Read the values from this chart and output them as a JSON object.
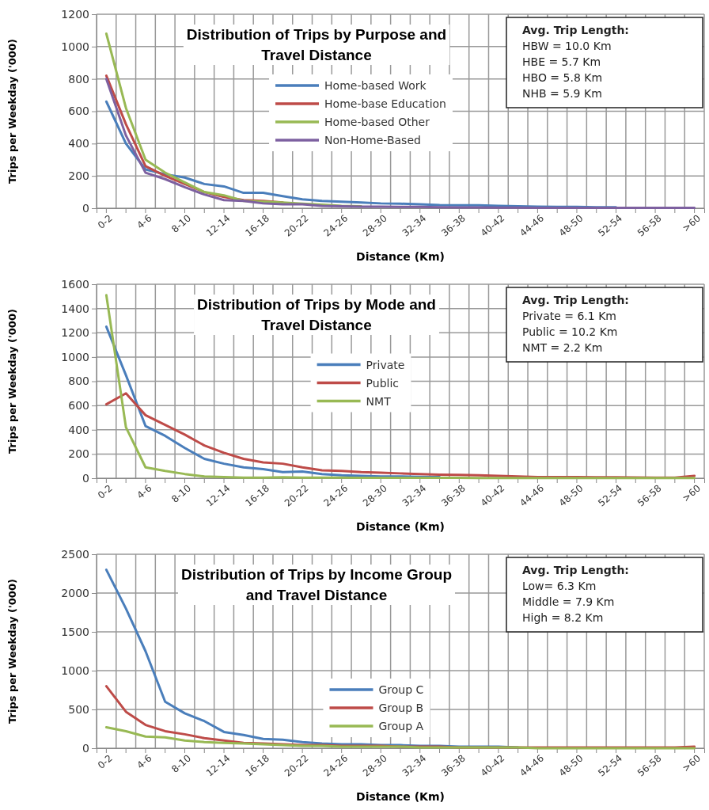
{
  "chart_data": [
    {
      "type": "line",
      "title": "Distribution of Trips by Purpose and\nTravel Distance",
      "xlabel": "Distance (Km)",
      "ylabel": "Trips per Weekday ('000)",
      "categories": [
        "0-2",
        null,
        "4-6",
        null,
        "8-10",
        null,
        "12-14",
        null,
        "16-18",
        null,
        "20-22",
        null,
        "24-26",
        null,
        "28-30",
        null,
        "32-34",
        null,
        "36-38",
        null,
        "40-42",
        null,
        "44-46",
        null,
        "48-50",
        null,
        "52-54",
        null,
        "56-58",
        null,
        ">60"
      ],
      "series": [
        {
          "name": "Home-based Work",
          "color": "#4a7ebb",
          "values": [
            660,
            400,
            240,
            210,
            190,
            150,
            135,
            95,
            95,
            75,
            55,
            45,
            40,
            35,
            30,
            28,
            25,
            20,
            18,
            18,
            15,
            12,
            10,
            8,
            8,
            6,
            6,
            null,
            null,
            null,
            null
          ]
        },
        {
          "name": "Home-base Education",
          "color": "#be4b48",
          "values": [
            820,
            520,
            260,
            200,
            150,
            100,
            70,
            50,
            45,
            35,
            null,
            null,
            null,
            null,
            null,
            null,
            null,
            null,
            null,
            null,
            null,
            null,
            null,
            null,
            null,
            null,
            null,
            null,
            null,
            null,
            null
          ]
        },
        {
          "name": "Home-based Other",
          "color": "#98b954",
          "values": [
            1080,
            620,
            300,
            220,
            160,
            100,
            80,
            45,
            40,
            35,
            28,
            22,
            15,
            12,
            null,
            null,
            null,
            null,
            null,
            null,
            null,
            null,
            null,
            null,
            null,
            null,
            null,
            null,
            null,
            null,
            null
          ]
        },
        {
          "name": "Non-Home-Based",
          "color": "#7d60a0",
          "values": [
            800,
            450,
            220,
            180,
            130,
            85,
            50,
            45,
            30,
            25,
            25,
            15,
            12,
            10,
            10,
            8,
            8,
            6,
            5,
            5,
            4,
            4,
            3,
            3,
            3,
            2,
            2,
            2,
            2,
            2,
            2
          ]
        }
      ],
      "ylim": [
        0,
        1200
      ],
      "yticks": [
        0,
        200,
        400,
        600,
        800,
        1000,
        1200
      ],
      "grid": true,
      "legend": "center",
      "marker": "none",
      "line_style": "solid",
      "annotations": [
        "Avg. Trip Length:",
        "HBW = 10.0 Km",
        "HBE = 5.7 Km",
        "HBO = 5.8 Km",
        "NHB = 5.9 Km"
      ]
    },
    {
      "type": "line",
      "title": "Distribution of Trips by Mode and\nTravel Distance",
      "xlabel": "Distance (Km)",
      "ylabel": "Trips per Weekday ('000)",
      "categories": [
        "0-2",
        null,
        "4-6",
        null,
        "8-10",
        null,
        "12-14",
        null,
        "16-18",
        null,
        "20-22",
        null,
        "24-26",
        null,
        "28-30",
        null,
        "32-34",
        null,
        "36-38",
        null,
        "40-42",
        null,
        "44-46",
        null,
        "48-50",
        null,
        "52-54",
        null,
        "56-58",
        null,
        ">60"
      ],
      "series": [
        {
          "name": "Private",
          "color": "#4a7ebb",
          "values": [
            1250,
            850,
            430,
            350,
            250,
            160,
            120,
            90,
            75,
            50,
            55,
            35,
            25,
            20,
            15,
            15,
            12,
            10,
            null,
            null,
            null,
            null,
            null,
            null,
            null,
            null,
            null,
            null,
            null,
            null,
            null
          ]
        },
        {
          "name": "Public",
          "color": "#be4b48",
          "values": [
            610,
            700,
            520,
            440,
            360,
            270,
            210,
            160,
            130,
            120,
            90,
            65,
            60,
            50,
            45,
            40,
            35,
            30,
            28,
            25,
            20,
            15,
            10,
            10,
            10,
            8,
            8,
            6,
            5,
            5,
            20
          ]
        },
        {
          "name": "NMT",
          "color": "#98b954",
          "values": [
            1510,
            420,
            90,
            60,
            35,
            15,
            10,
            5,
            5,
            8,
            5,
            5,
            5,
            4,
            4,
            3,
            3,
            3,
            3,
            2,
            2,
            2,
            2,
            2,
            2,
            2,
            2,
            2,
            2,
            2,
            2
          ]
        }
      ],
      "ylim": [
        0,
        1600
      ],
      "yticks": [
        0,
        200,
        400,
        600,
        800,
        1000,
        1200,
        1400,
        1600
      ],
      "grid": true,
      "legend": "center",
      "marker": "none",
      "line_style": "solid",
      "annotations": [
        "Avg. Trip Length:",
        "Private = 6.1 Km",
        "Public = 10.2 Km",
        "NMT = 2.2 Km"
      ]
    },
    {
      "type": "line",
      "title": "Distribution of Trips by Income Group\nand Travel Distance",
      "xlabel": "Distance (Km)",
      "ylabel": "Trips per Weekday ('000)",
      "categories": [
        "0-2",
        null,
        "4-6",
        null,
        "8-10",
        null,
        "12-14",
        null,
        "16-18",
        null,
        "20-22",
        null,
        "24-26",
        null,
        "28-30",
        null,
        "32-34",
        null,
        "36-38",
        null,
        "40-42",
        null,
        "44-46",
        null,
        "48-50",
        null,
        "52-54",
        null,
        "56-58",
        null,
        ">60"
      ],
      "series": [
        {
          "name": "Group C",
          "color": "#4a7ebb",
          "values": [
            2300,
            1800,
            1250,
            600,
            450,
            350,
            210,
            170,
            120,
            110,
            80,
            60,
            50,
            50,
            40,
            40,
            30,
            30,
            20,
            20,
            20,
            10,
            null,
            null,
            null,
            null,
            null,
            null,
            null,
            null,
            null
          ]
        },
        {
          "name": "Group B",
          "color": "#be4b48",
          "values": [
            800,
            470,
            300,
            220,
            180,
            130,
            100,
            70,
            60,
            50,
            40,
            40,
            30,
            30,
            30,
            20,
            20,
            20,
            10,
            10,
            10,
            10,
            10,
            10,
            10,
            10,
            10,
            10,
            10,
            10,
            20
          ]
        },
        {
          "name": "Group A",
          "color": "#98b954",
          "values": [
            270,
            220,
            150,
            140,
            100,
            80,
            70,
            60,
            50,
            40,
            30,
            30,
            20,
            20,
            20,
            20,
            10,
            10,
            10,
            10,
            10,
            10,
            0,
            0,
            0,
            0,
            0,
            0,
            0,
            0,
            0
          ]
        }
      ],
      "ylim": [
        0,
        2500
      ],
      "yticks": [
        0,
        500,
        1000,
        1500,
        2000,
        2500
      ],
      "grid": true,
      "legend": "bottom",
      "marker": "none",
      "line_style": "solid",
      "annotations": [
        "Avg. Trip Length:",
        "Low= 6.3 Km",
        "Middle = 7.9 Km",
        "High =  8.2 Km"
      ]
    }
  ]
}
